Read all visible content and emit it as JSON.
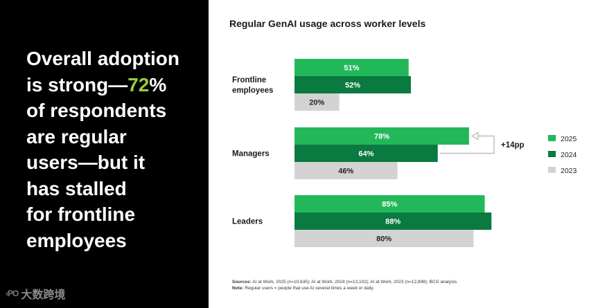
{
  "headline": {
    "line1": "Overall adoption",
    "line2_pre": "is strong—",
    "line2_accent": "72",
    "line2_post": "%",
    "line3": "of respondents",
    "line4": "are regular",
    "line5": "users—but it",
    "line6": "has stalled",
    "line7": "for frontline",
    "line8": "employees"
  },
  "watermark": {
    "mark": "‹PO",
    "text": "大数跨境"
  },
  "colors": {
    "y2025": "#22b85a",
    "y2024": "#0a7a40",
    "y2023": "#d3d3d3",
    "accent": "#9ccc3a"
  },
  "chart_data": {
    "type": "bar",
    "orientation": "horizontal",
    "title": "Regular GenAI usage across worker levels",
    "categories": [
      {
        "lines": [
          "Frontline",
          "employees"
        ]
      },
      {
        "lines": [
          "Managers"
        ]
      },
      {
        "lines": [
          "Leaders"
        ]
      }
    ],
    "series": [
      {
        "name": "2025",
        "values": [
          51,
          78,
          85
        ],
        "labels": [
          "51%",
          "78%",
          "85%"
        ]
      },
      {
        "name": "2024",
        "values": [
          52,
          64,
          88
        ],
        "labels": [
          "52%",
          "64%",
          "88%"
        ]
      },
      {
        "name": "2023",
        "values": [
          20,
          46,
          80
        ],
        "labels": [
          "20%",
          "46%",
          "80%"
        ]
      }
    ],
    "annotation": {
      "text": "+14pp",
      "category": "Managers",
      "from": "2024",
      "to": "2025"
    },
    "xlim": [
      0,
      100
    ]
  },
  "footnote": {
    "sources_label": "Sources:",
    "sources_text": " AI at Work, 2025 (n=10,635); AI at Work, 2024 (n=13,102); AI at Work, 2023 (n=12,898); BCG analysis.",
    "note_label": "Note:",
    "note_text": " Regular users = people that use AI several times a week or daily."
  }
}
